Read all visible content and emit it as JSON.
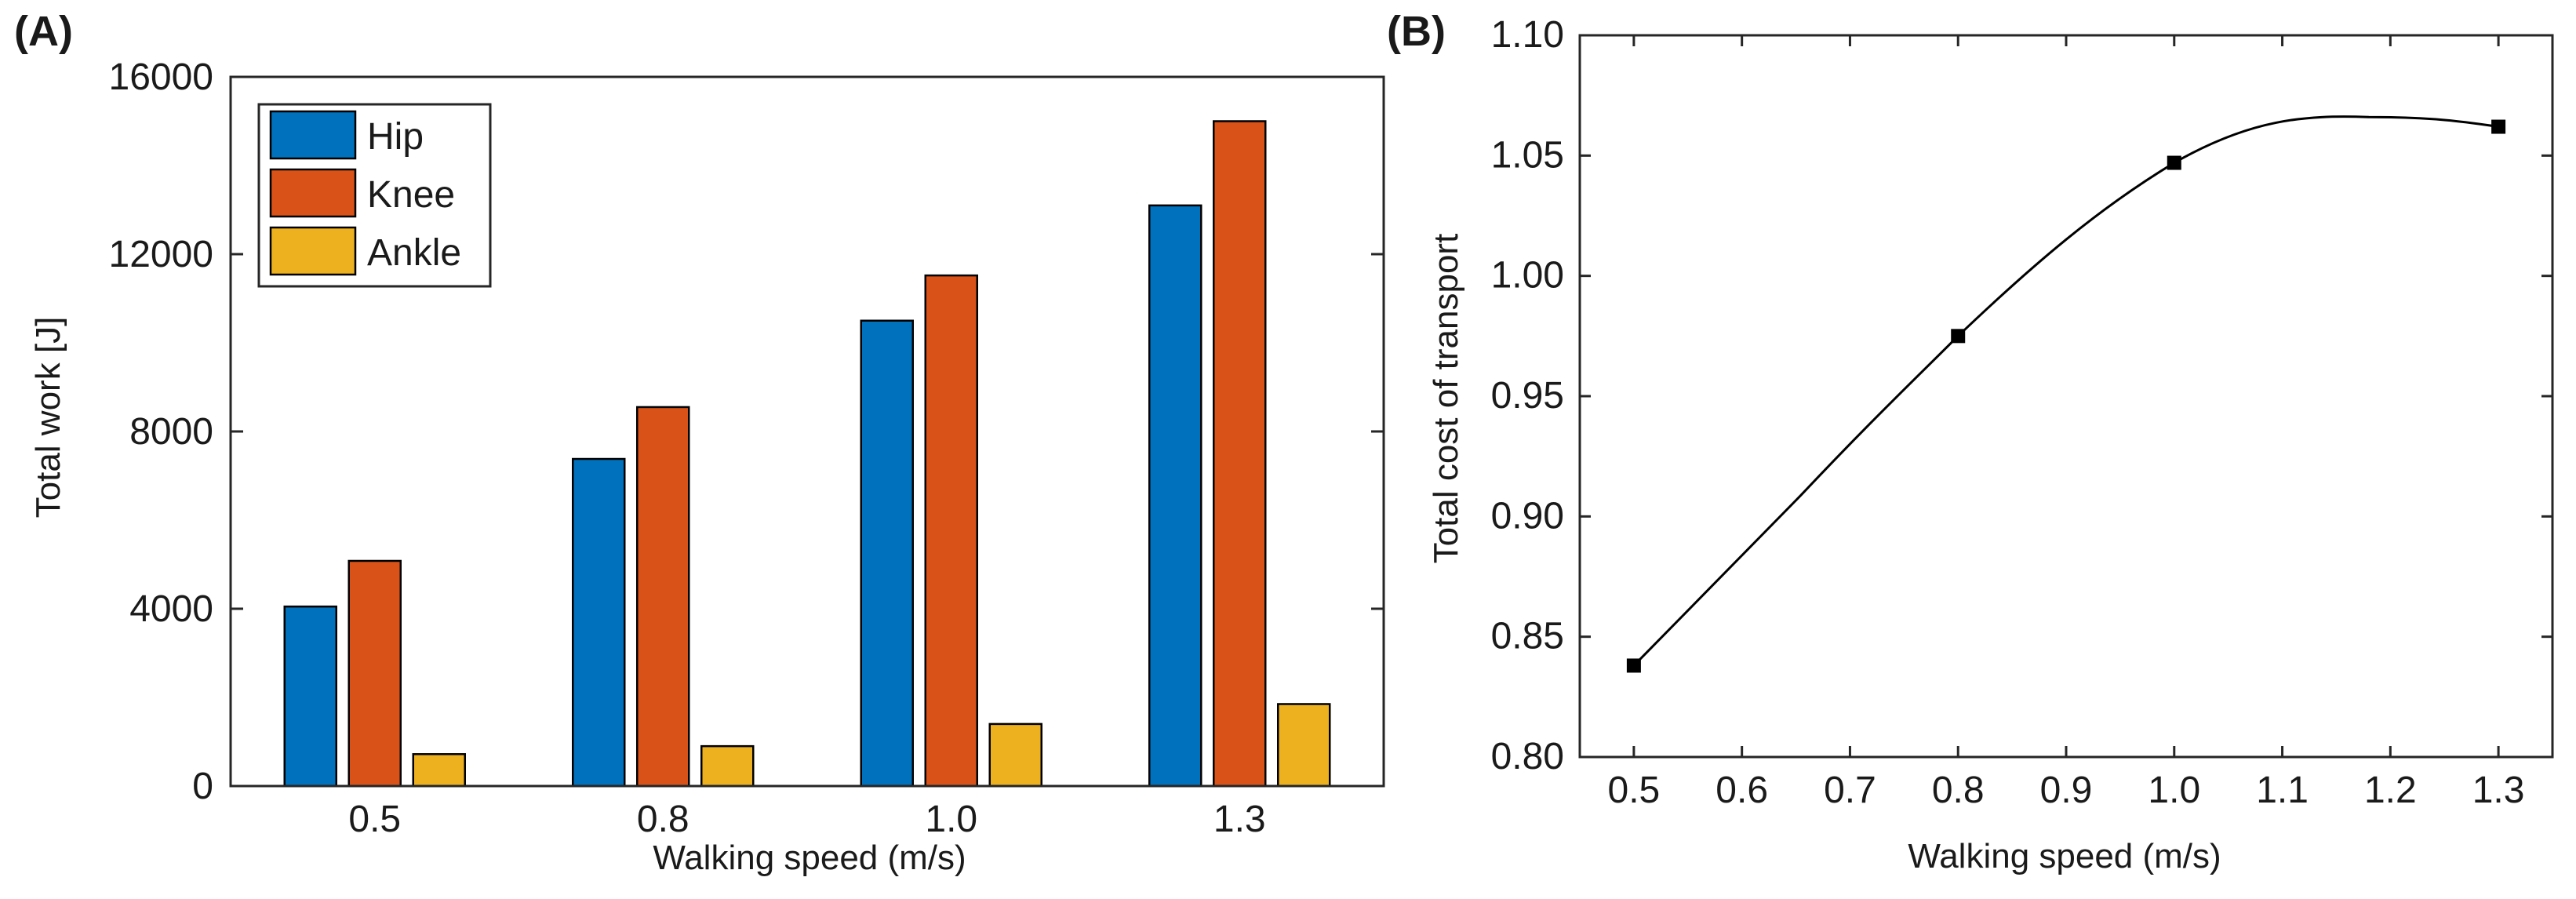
{
  "chart_data": [
    {
      "panel": "(A)",
      "type": "bar",
      "categories": [
        "0.5",
        "0.8",
        "1.0",
        "1.3"
      ],
      "series": [
        {
          "name": "Hip",
          "color": "#0072BD",
          "values": [
            4050,
            7380,
            10500,
            13100
          ]
        },
        {
          "name": "Knee",
          "color": "#D95319",
          "values": [
            5080,
            8550,
            11520,
            15000
          ]
        },
        {
          "name": "Ankle",
          "color": "#EDB120",
          "values": [
            720,
            900,
            1400,
            1850
          ]
        }
      ],
      "xlabel": "Walking speed (m/s)",
      "ylabel": "Total work [J]",
      "ylim": [
        0,
        16000
      ],
      "yticks": [
        "0",
        "4000",
        "8000",
        "12000",
        "16000"
      ],
      "legend": "top-left"
    },
    {
      "panel": "(B)",
      "type": "line",
      "x": [
        0.5,
        0.8,
        1.0,
        1.3
      ],
      "y": [
        0.838,
        0.975,
        1.047,
        1.062
      ],
      "curve_peak": {
        "x": 1.18,
        "y": 1.066
      },
      "xlabel": "Walking speed (m/s)",
      "ylabel": "Total cost of transport",
      "xlim": [
        0.45,
        1.35
      ],
      "ylim": [
        0.8,
        1.1
      ],
      "xticks": [
        "0.5",
        "0.6",
        "0.7",
        "0.8",
        "0.9",
        "1.0",
        "1.1",
        "1.2",
        "1.3"
      ],
      "yticks": [
        "0.80",
        "0.85",
        "0.90",
        "0.95",
        "1.00",
        "1.05",
        "1.10"
      ],
      "marker": "square",
      "color": "#000000"
    }
  ]
}
